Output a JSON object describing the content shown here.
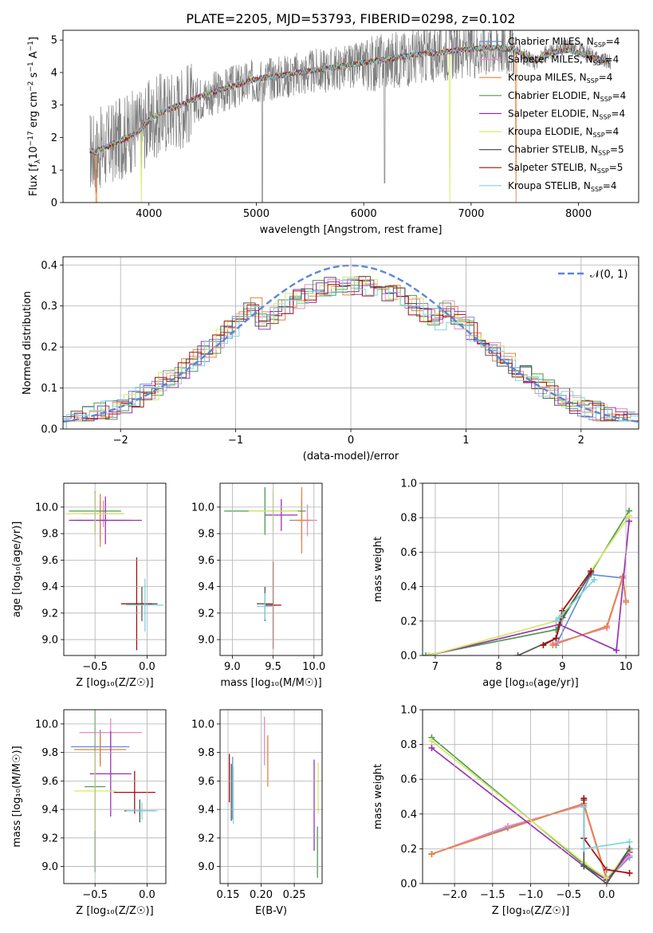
{
  "figure_title": "PLATE=2205, MJD=53793, FIBERID=0298, z=0.102",
  "model_colors": [
    "#6a8fd8",
    "#e78ac3",
    "#e8833a",
    "#4f9a4f",
    "#9a32b5",
    "#d5ea61",
    "#555555",
    "#a40f0f",
    "#7fd5dc"
  ],
  "chart_data": [
    {
      "id": "spectrum",
      "type": "line",
      "title": "PLATE=2205, MJD=53793, FIBERID=0298, z=0.102",
      "xlabel": "wavelength [Angstrom, rest frame]",
      "ylabel": "Flux [f_λ 10⁻¹⁷ erg cm⁻² s⁻¹ Å⁻¹]",
      "ylabel_parts": {
        "a": "Flux [f",
        "b": "λ",
        "c": "10",
        "d": "−17",
        "e": " erg cm",
        "f": "−2",
        "g": " s",
        "h": "−1",
        "i": " A",
        "j": "−1",
        "k": "]"
      },
      "xlim": [
        3200,
        8560
      ],
      "ylim": [
        0,
        5.3
      ],
      "xticks": [
        4000,
        5000,
        6000,
        7000,
        8000
      ],
      "yticks": [
        0,
        1,
        2,
        3,
        4,
        5
      ],
      "grid": false,
      "legend_position": "top-right",
      "data_color": "#808080",
      "data_x": [
        3450,
        3500,
        3550,
        3600,
        3650,
        3700,
        3750,
        3800,
        3850,
        3900,
        3950,
        4000,
        4100,
        4200,
        4300,
        4400,
        4500,
        4600,
        4700,
        4800,
        4900,
        5000,
        5100,
        5200,
        5300,
        5400,
        5500,
        5600,
        5700,
        5800,
        5900,
        6000,
        6100,
        6200,
        6300,
        6400,
        6500,
        6600,
        6700,
        6800,
        6900,
        7000,
        7100,
        7200,
        7300,
        7400,
        7500,
        7600,
        7700,
        7800,
        7900,
        8000,
        8100,
        8200,
        8300
      ],
      "data_y": [
        1.6,
        1.5,
        1.65,
        1.7,
        1.8,
        1.9,
        2.0,
        2.1,
        2.2,
        2.25,
        2.3,
        2.5,
        2.7,
        2.85,
        2.95,
        3.1,
        3.25,
        3.35,
        3.45,
        3.55,
        3.65,
        3.75,
        3.8,
        3.85,
        3.9,
        3.95,
        4.0,
        4.05,
        4.1,
        4.15,
        4.2,
        4.25,
        4.3,
        4.35,
        4.4,
        4.45,
        4.5,
        4.55,
        4.6,
        4.65,
        4.7,
        4.7,
        4.75,
        4.8,
        4.8,
        4.75,
        4.5,
        4.3,
        4.6,
        4.7,
        4.8,
        4.7,
        4.6,
        4.4,
        4.3
      ],
      "model_x": [
        3450,
        3500,
        3600,
        3700,
        3800,
        3900,
        4000,
        4100,
        4200,
        4300,
        4400,
        4500,
        4600,
        4700,
        4800,
        4900,
        5000,
        5100,
        5200,
        5300,
        5400,
        5500,
        5600,
        5700,
        5800,
        5900,
        6000,
        6100,
        6200,
        6300,
        6400,
        6500,
        6600,
        6700,
        6800,
        6900,
        7000,
        7100,
        7200,
        7300,
        7400,
        7500,
        7600,
        7700,
        7800,
        7900,
        8000,
        8100,
        8200,
        8300
      ],
      "model_y": [
        1.6,
        1.55,
        1.7,
        1.85,
        2.0,
        2.15,
        2.55,
        2.75,
        2.9,
        3.0,
        3.15,
        3.3,
        3.4,
        3.5,
        3.6,
        3.7,
        3.8,
        3.85,
        3.9,
        3.95,
        4.0,
        4.05,
        4.1,
        4.15,
        4.2,
        4.25,
        4.3,
        4.35,
        4.4,
        4.45,
        4.5,
        4.55,
        4.6,
        4.6,
        4.65,
        4.7,
        4.72,
        4.75,
        4.75,
        4.75,
        4.7,
        4.55,
        4.35,
        4.55,
        4.65,
        4.7,
        4.6,
        4.5,
        4.4,
        4.35
      ],
      "series": [
        {
          "name": "Chabrier MILES, N",
          "sub": "SSP",
          "tail": "=4"
        },
        {
          "name": "Salpeter MILES, N",
          "sub": "SSP",
          "tail": "=4"
        },
        {
          "name": "Kroupa MILES, N",
          "sub": "SSP",
          "tail": "=4"
        },
        {
          "name": "Chabrier ELODIE, N",
          "sub": "SSP",
          "tail": "=4"
        },
        {
          "name": "Salpeter ELODIE, N",
          "sub": "SSP",
          "tail": "=4"
        },
        {
          "name": "Kroupa ELODIE, N",
          "sub": "SSP",
          "tail": "=4"
        },
        {
          "name": "Chabrier STELIB, N",
          "sub": "SSP",
          "tail": "=5"
        },
        {
          "name": "Salpeter STELIB, N",
          "sub": "SSP",
          "tail": "=5"
        },
        {
          "name": "Kroupa STELIB, N",
          "sub": "SSP",
          "tail": "=4"
        }
      ]
    },
    {
      "id": "residuals",
      "type": "line",
      "xlabel": "(data-model)/error",
      "ylabel": "Normed distribution",
      "xlim": [
        -2.5,
        2.5
      ],
      "ylim": [
        0,
        0.42
      ],
      "xticks": [
        -2,
        -1,
        0,
        1,
        2
      ],
      "xtick_labels": [
        "−2",
        "−1",
        "0",
        "1",
        "2"
      ],
      "yticks": [
        0.0,
        0.1,
        0.2,
        0.3,
        0.4
      ],
      "ytick_labels": [
        "0.0",
        "0.1",
        "0.2",
        "0.3",
        "0.4"
      ],
      "grid": true,
      "legend_position": "top-right",
      "gaussian_label": "𝒩(0, 1)",
      "gaussian_color": "#5b86d6",
      "bin_width": 0.1,
      "bin_start": -2.5
    },
    {
      "id": "age-vs-Z",
      "type": "scatter",
      "xlabel": "Z [log₁₀(Z/Z☉)]",
      "ylabel": "age  [log₁₀(age/yr)]",
      "xlim": [
        -0.8,
        0.18
      ],
      "ylim": [
        8.88,
        10.18
      ],
      "xticks": [
        -0.5,
        0.0
      ],
      "xtick_labels": [
        "−0.5",
        "0.0"
      ],
      "yticks": [
        9.0,
        9.2,
        9.4,
        9.6,
        9.8,
        10.0
      ],
      "ytick_labels": [
        "9.0",
        "9.2",
        "9.4",
        "9.6",
        "9.8",
        "10.0"
      ],
      "grid": true,
      "points": [
        {
          "x": -0.45,
          "y": 9.9,
          "xerr": 0.25,
          "yerr": 0.15
        },
        {
          "x": -0.42,
          "y": 9.95,
          "xerr": 0.2,
          "yerr": 0.1
        },
        {
          "x": -0.45,
          "y": 9.9,
          "xerr": 0.3,
          "yerr": 0.2
        },
        {
          "x": -0.5,
          "y": 9.97,
          "xerr": 0.25,
          "yerr": 0.15
        },
        {
          "x": -0.4,
          "y": 9.9,
          "xerr": 0.35,
          "yerr": 0.18
        },
        {
          "x": -0.5,
          "y": 9.95,
          "xerr": 0.28,
          "yerr": 0.16
        },
        {
          "x": -0.05,
          "y": 9.27,
          "xerr": 0.15,
          "yerr": 0.13
        },
        {
          "x": -0.1,
          "y": 9.27,
          "xerr": 0.15,
          "yerr": 0.35
        },
        {
          "x": -0.02,
          "y": 9.26,
          "xerr": 0.18,
          "yerr": 0.2
        }
      ]
    },
    {
      "id": "age-vs-mass",
      "type": "scatter",
      "xlabel": "mass [log₁₀(M/M☉)]",
      "ylabel": "",
      "xlim": [
        8.85,
        10.1
      ],
      "ylim": [
        8.88,
        10.18
      ],
      "xticks": [
        9.0,
        9.5,
        10.0
      ],
      "xtick_labels": [
        "9.0",
        "9.5",
        "10.0"
      ],
      "yticks": [
        9.0,
        9.2,
        9.4,
        9.6,
        9.8,
        10.0
      ],
      "ytick_labels": [
        "9.0",
        "9.2",
        "9.4",
        "9.6",
        "9.8",
        "10.0"
      ],
      "grid": true,
      "points": [
        {
          "x": 9.85,
          "y": 9.9,
          "xerr": 0.15,
          "yerr": 0.15
        },
        {
          "x": 9.92,
          "y": 9.9,
          "xerr": 0.12,
          "yerr": 0.12
        },
        {
          "x": 9.85,
          "y": 9.9,
          "xerr": 0.1,
          "yerr": 0.25
        },
        {
          "x": 9.4,
          "y": 9.97,
          "xerr": 0.5,
          "yerr": 0.18
        },
        {
          "x": 9.6,
          "y": 9.94,
          "xerr": 0.2,
          "yerr": 0.12
        },
        {
          "x": 9.5,
          "y": 9.97,
          "xerr": 0.3,
          "yerr": 0.15
        },
        {
          "x": 9.4,
          "y": 9.27,
          "xerr": 0.1,
          "yerr": 0.13
        },
        {
          "x": 9.5,
          "y": 9.26,
          "xerr": 0.1,
          "yerr": 0.33
        },
        {
          "x": 9.4,
          "y": 9.25,
          "xerr": 0.1,
          "yerr": 0.1
        }
      ]
    },
    {
      "id": "mass-weight-vs-age",
      "type": "line",
      "xlabel": "age  [log₁₀(age/yr)]",
      "ylabel": "mass weight",
      "xlim": [
        6.8,
        10.2
      ],
      "ylim": [
        0,
        1
      ],
      "xticks": [
        7,
        8,
        9,
        10
      ],
      "xtick_labels": [
        "7",
        "8",
        "9",
        "10"
      ],
      "yticks": [
        0.0,
        0.2,
        0.4,
        0.6,
        0.8,
        1.0
      ],
      "ytick_labels": [
        "0.0",
        "0.2",
        "0.4",
        "0.6",
        "0.8",
        "1.0"
      ],
      "grid": true,
      "series": [
        {
          "x": [
            8.9,
            9.45,
            9.95,
            10.0
          ],
          "y": [
            0.06,
            0.47,
            0.45,
            0.32
          ]
        },
        {
          "x": [
            8.85,
            9.7,
            9.95,
            10.0
          ],
          "y": [
            0.07,
            0.16,
            0.45,
            0.32
          ]
        },
        {
          "x": [
            8.85,
            9.7,
            9.95,
            10.0
          ],
          "y": [
            0.06,
            0.17,
            0.46,
            0.31
          ]
        },
        {
          "x": [
            6.85,
            8.9,
            10.05
          ],
          "y": [
            0.0,
            0.15,
            0.84
          ]
        },
        {
          "x": [
            6.9,
            8.95,
            9.85,
            10.05
          ],
          "y": [
            0.0,
            0.18,
            0.03,
            0.78
          ]
        },
        {
          "x": [
            6.9,
            8.9,
            10.05
          ],
          "y": [
            0.0,
            0.2,
            0.81
          ]
        },
        {
          "x": [
            8.3,
            8.9,
            9.0,
            9.45
          ],
          "y": [
            0.0,
            0.1,
            0.22,
            0.48
          ]
        },
        {
          "x": [
            8.7,
            8.9,
            9.0,
            9.45
          ],
          "y": [
            0.06,
            0.1,
            0.26,
            0.49
          ]
        },
        {
          "x": [
            8.9,
            8.95,
            9.5
          ],
          "y": [
            0.2,
            0.22,
            0.44
          ]
        }
      ]
    },
    {
      "id": "mass-vs-Z",
      "type": "scatter",
      "xlabel": "Z [log₁₀(Z/Z☉)]",
      "ylabel": "mass [log₁₀(M/M☉)]",
      "xlim": [
        -0.8,
        0.18
      ],
      "ylim": [
        8.88,
        10.1
      ],
      "xticks": [
        -0.5,
        0.0
      ],
      "xtick_labels": [
        "−0.5",
        "0.0"
      ],
      "yticks": [
        9.0,
        9.2,
        9.4,
        9.6,
        9.8,
        10.0
      ],
      "ytick_labels": [
        "9.0",
        "9.2",
        "9.4",
        "9.6",
        "9.8",
        "10.0"
      ],
      "grid": true,
      "points": [
        {
          "x": -0.45,
          "y": 9.84,
          "xerr": 0.28,
          "yerr": 0.12
        },
        {
          "x": -0.35,
          "y": 9.94,
          "xerr": 0.3,
          "yerr": 0.1
        },
        {
          "x": -0.45,
          "y": 9.82,
          "xerr": 0.25,
          "yerr": 0.12
        },
        {
          "x": -0.5,
          "y": 9.56,
          "xerr": 0.1,
          "yerr": 0.6
        },
        {
          "x": -0.35,
          "y": 9.65,
          "xerr": 0.2,
          "yerr": 0.3
        },
        {
          "x": -0.5,
          "y": 9.53,
          "xerr": 0.2,
          "yerr": 0.28
        },
        {
          "x": -0.07,
          "y": 9.39,
          "xerr": 0.15,
          "yerr": 0.08
        },
        {
          "x": -0.12,
          "y": 9.52,
          "xerr": 0.2,
          "yerr": 0.15
        },
        {
          "x": -0.05,
          "y": 9.39,
          "xerr": 0.15,
          "yerr": 0.06
        }
      ]
    },
    {
      "id": "mass-vs-EBV",
      "type": "scatter",
      "xlabel": "E(B-V)",
      "ylabel": "",
      "xlim": [
        0.138,
        0.292
      ],
      "ylim": [
        8.88,
        10.1
      ],
      "xticks": [
        0.15,
        0.2,
        0.25
      ],
      "xtick_labels": [
        "0.15",
        "0.20",
        "0.25"
      ],
      "yticks": [
        9.0,
        9.2,
        9.4,
        9.6,
        9.8,
        10.0
      ],
      "ytick_labels": [
        "9.0",
        "9.2",
        "9.4",
        "9.6",
        "9.8",
        "10.0"
      ],
      "grid": true,
      "points": [
        {
          "x": 0.157,
          "y": 9.55,
          "xerr": 0,
          "yerr": 0.22
        },
        {
          "x": 0.205,
          "y": 9.88,
          "xerr": 0,
          "yerr": 0.17
        },
        {
          "x": 0.21,
          "y": 9.74,
          "xerr": 0,
          "yerr": 0.18
        },
        {
          "x": 0.285,
          "y": 9.1,
          "xerr": 0,
          "yerr": 0.18
        },
        {
          "x": 0.28,
          "y": 9.43,
          "xerr": 0,
          "yerr": 0.32
        },
        {
          "x": 0.286,
          "y": 9.55,
          "xerr": 0,
          "yerr": 0.18
        },
        {
          "x": 0.155,
          "y": 9.52,
          "xerr": 0,
          "yerr": 0.2
        },
        {
          "x": 0.152,
          "y": 9.62,
          "xerr": 0,
          "yerr": 0.17
        },
        {
          "x": 0.158,
          "y": 9.5,
          "xerr": 0,
          "yerr": 0.2
        }
      ]
    },
    {
      "id": "mass-weight-vs-Z",
      "type": "line",
      "xlabel": "Z [log₁₀(Z/Z☉)]",
      "ylabel": "mass weight",
      "xlim": [
        -2.42,
        0.42
      ],
      "ylim": [
        0,
        1
      ],
      "xticks": [
        -2.0,
        -1.5,
        -1.0,
        -0.5,
        0.0
      ],
      "xtick_labels": [
        "−2.0",
        "−1.5",
        "−1.0",
        "−0.5",
        "0.0"
      ],
      "yticks": [
        0.0,
        0.2,
        0.4,
        0.6,
        0.8,
        1.0
      ],
      "ytick_labels": [
        "0.0",
        "0.2",
        "0.4",
        "0.6",
        "0.8",
        "1.0"
      ],
      "grid": true,
      "series": [
        {
          "x": [
            -2.3,
            -1.3,
            -0.3,
            0.0,
            0.3
          ],
          "y": [
            0.17,
            0.32,
            0.46,
            0.02,
            0.15
          ]
        },
        {
          "x": [
            -2.3,
            -1.3,
            -0.3,
            0.0,
            0.3
          ],
          "y": [
            0.17,
            0.33,
            0.45,
            0.02,
            0.16
          ]
        },
        {
          "x": [
            -2.3,
            -0.3,
            0.0,
            0.3
          ],
          "y": [
            0.17,
            0.46,
            0.03,
            0.18
          ]
        },
        {
          "x": [
            -2.3,
            -0.3,
            0.0,
            0.3
          ],
          "y": [
            0.84,
            0.11,
            0.02,
            0.2
          ]
        },
        {
          "x": [
            -2.3,
            -0.3,
            0.0,
            0.3
          ],
          "y": [
            0.78,
            0.1,
            0.02,
            0.18
          ]
        },
        {
          "x": [
            -2.3,
            -0.3,
            0.0,
            0.3
          ],
          "y": [
            0.82,
            0.12,
            0.03,
            0.19
          ]
        },
        {
          "x": [
            -0.3,
            -0.3,
            0.0,
            0.3
          ],
          "y": [
            0.48,
            0.1,
            0.0,
            0.2
          ]
        },
        {
          "x": [
            -0.3,
            -0.3,
            0.0,
            0.3
          ],
          "y": [
            0.49,
            0.26,
            0.08,
            0.06
          ]
        },
        {
          "x": [
            -0.3,
            -0.3,
            0.3
          ],
          "y": [
            0.44,
            0.2,
            0.24
          ]
        }
      ]
    }
  ]
}
